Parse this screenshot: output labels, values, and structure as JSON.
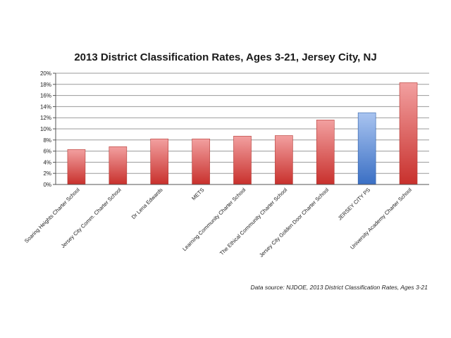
{
  "chart_data": {
    "type": "bar",
    "title": "2013 District Classification Rates, Ages 3-21, Jersey City, NJ",
    "xlabel": "",
    "ylabel": "",
    "ylim": [
      0,
      20
    ],
    "y_ticks": [
      "0%",
      "2%",
      "4%",
      "6%",
      "8%",
      "10%",
      "12%",
      "14%",
      "16%",
      "18%",
      "20%"
    ],
    "grid": true,
    "categories": [
      "Soaring Heights Charter School",
      "Jersey City Comm. Charter School",
      "Dr Lena Edwards",
      "METS",
      "Learning Community Charter School",
      "The Ethical Community Charter School",
      "Jersey City Golden Door Charter School",
      "JERSEY CITY PS",
      "University Academy Charter School"
    ],
    "values": [
      6.3,
      6.8,
      8.2,
      8.2,
      8.7,
      8.8,
      11.6,
      12.9,
      18.3
    ],
    "unit": "%",
    "highlight_index": 7,
    "colors": {
      "bar_top": "#f2a0a0",
      "bar_bottom": "#c8302c",
      "highlight_top": "#a9c4f0",
      "highlight_bottom": "#3a6fc4",
      "grid": "#9a9a9a",
      "axis": "#555555"
    },
    "source": "Data source: NJDOE, 2013 District Classification Rates, Ages 3-21"
  }
}
